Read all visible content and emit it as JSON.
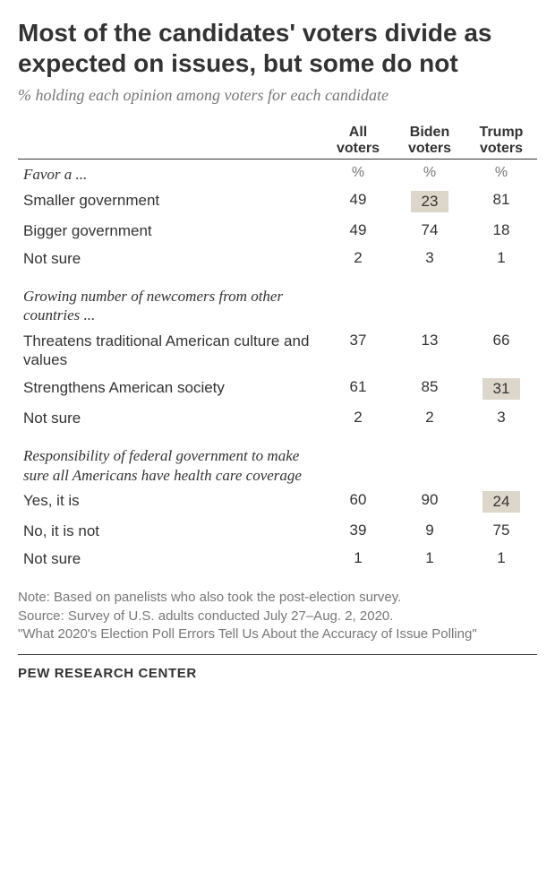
{
  "title": "Most of the candidates' voters divide as expected on issues, but some do not",
  "subtitle": "% holding each opinion among voters for each candidate",
  "columns": {
    "c1": "All voters",
    "c2": "Biden voters",
    "c3": "Trump voters"
  },
  "pct_label": "%",
  "groups": [
    {
      "header": "Favor a ...",
      "rows": [
        {
          "label": "Smaller government",
          "all": "49",
          "biden": "23",
          "trump": "81",
          "biden_hl": true
        },
        {
          "label": "Bigger government",
          "all": "49",
          "biden": "74",
          "trump": "18"
        },
        {
          "label": "Not sure",
          "all": "2",
          "biden": "3",
          "trump": "1"
        }
      ]
    },
    {
      "header": "Growing number of newcomers from other countries ...",
      "rows": [
        {
          "label": "Threatens traditional American culture and values",
          "all": "37",
          "biden": "13",
          "trump": "66"
        },
        {
          "label": "Strengthens American society",
          "all": "61",
          "biden": "85",
          "trump": "31",
          "trump_hl": true
        },
        {
          "label": "Not sure",
          "all": "2",
          "biden": "2",
          "trump": "3"
        }
      ]
    },
    {
      "header": "Responsibility of federal government to make sure all Americans have health care coverage",
      "rows": [
        {
          "label": "Yes, it is",
          "all": "60",
          "biden": "90",
          "trump": "24",
          "trump_hl": true
        },
        {
          "label": "No, it is not",
          "all": "39",
          "biden": "9",
          "trump": "75"
        },
        {
          "label": "Not sure",
          "all": "1",
          "biden": "1",
          "trump": "1"
        }
      ]
    }
  ],
  "note": "Note: Based on panelists who also took the post-election survey.\nSource: Survey of U.S. adults conducted July 27–Aug. 2, 2020.\n\"What 2020's Election Poll Errors Tell Us About the Accuracy of Issue Polling\"",
  "brand": "PEW RESEARCH CENTER",
  "style": {
    "highlight_bg": "#dcd7ca",
    "text_color": "#333333",
    "muted_color": "#777777",
    "bg": "#ffffff"
  }
}
